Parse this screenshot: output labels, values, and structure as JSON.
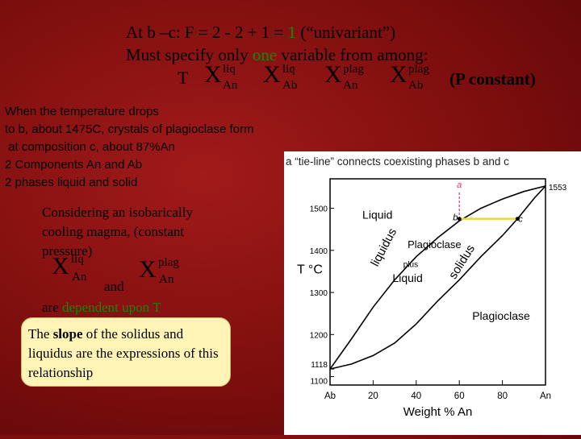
{
  "header": {
    "line1_prefix": "At b –c: F = 2 - 2 + 1 = ",
    "line1_value": "1",
    "line1_suffix": " (“univariant”)",
    "line2_prefix": "Must specify only ",
    "line2_value": "one",
    "line2_suffix": " variable from among:",
    "var_T": "T",
    "var_X": "X",
    "vars": [
      {
        "sup": "liq",
        "sub": "An"
      },
      {
        "sup": "liq",
        "sub": "Ab"
      },
      {
        "sup": "plag",
        "sub": "An"
      },
      {
        "sup": "plag",
        "sub": "Ab"
      }
    ],
    "p_constant": "(P constant)"
  },
  "text_block": {
    "lines": [
      "When the temperature drops",
      "to b, about 1475C, crystals of plagioclase form",
      " at composition c, about 87%An",
      "2 Components An and Ab",
      "2 phases liquid and solid"
    ]
  },
  "magma": {
    "lines": [
      "Considering an isobarically",
      "cooling magma, (constant",
      "pressure)"
    ],
    "x1_sup": "liq",
    "x1_sub": "An",
    "x2_sup": "plag",
    "x2_sub": "An",
    "and": "and",
    "dependent_prefix": "are ",
    "dependent_highlight": "dependent upon T"
  },
  "note": {
    "prefix": "The ",
    "bold": "slope",
    "suffix": " of the solidus and liquidus are the expressions of this relationship"
  },
  "chart_data": {
    "type": "line",
    "caption": "a “tie-line” connects coexisting phases b and c",
    "xlabel": "Weight % An",
    "ylabel": "T °C",
    "x_ticks": [
      "Ab",
      "20",
      "40",
      "60",
      "80",
      "An"
    ],
    "y_ticks": [
      "1100",
      "1118",
      "1200",
      "1300",
      "1400",
      "1500",
      "1553"
    ],
    "xlim": [
      0,
      100
    ],
    "ylim": [
      1080,
      1570
    ],
    "series": [
      {
        "name": "liquidus",
        "points": [
          [
            0,
            1118
          ],
          [
            10,
            1190
          ],
          [
            20,
            1265
          ],
          [
            30,
            1330
          ],
          [
            40,
            1385
          ],
          [
            50,
            1430
          ],
          [
            60,
            1470
          ],
          [
            70,
            1500
          ],
          [
            80,
            1522
          ],
          [
            90,
            1540
          ],
          [
            100,
            1553
          ]
        ]
      },
      {
        "name": "solidus",
        "points": [
          [
            0,
            1118
          ],
          [
            10,
            1130
          ],
          [
            20,
            1150
          ],
          [
            30,
            1180
          ],
          [
            40,
            1225
          ],
          [
            50,
            1280
          ],
          [
            60,
            1330
          ],
          [
            70,
            1385
          ],
          [
            80,
            1435
          ],
          [
            87,
            1475
          ],
          [
            95,
            1525
          ],
          [
            100,
            1553
          ]
        ]
      }
    ],
    "points": [
      {
        "label": "a",
        "x": 60,
        "y": 1545
      },
      {
        "label": "b",
        "x": 60,
        "y": 1475
      },
      {
        "label": "c",
        "x": 87,
        "y": 1475
      }
    ],
    "region_labels": [
      "Liquid",
      "Plagioclase",
      "plus",
      "Liquid",
      "Plagioclase",
      "liquidus",
      "solidus"
    ],
    "colors": {
      "main": "#000000",
      "marker": "#d9356b",
      "tieline": "#f2d535"
    }
  }
}
